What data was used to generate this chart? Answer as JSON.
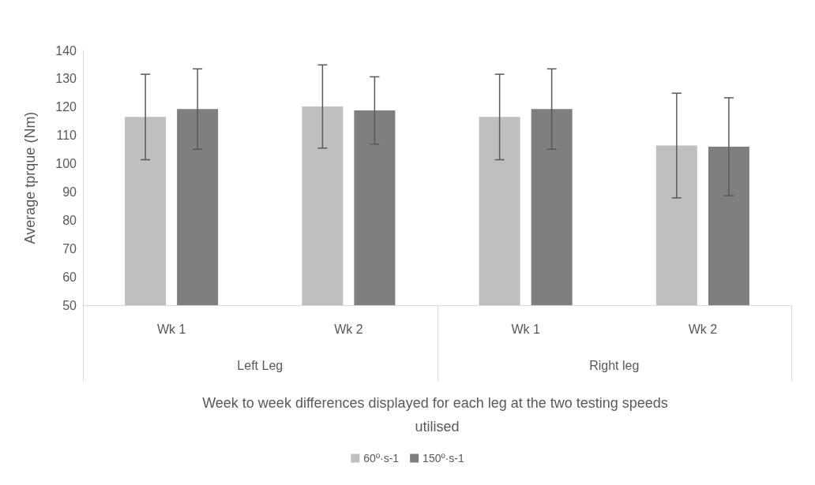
{
  "chart_data": {
    "type": "bar",
    "categories": [
      "Wk 1",
      "Wk 2",
      "Wk 1",
      "Wk 2"
    ],
    "annotations": [
      "Left Leg",
      "Right leg"
    ],
    "xlabel": "Week to week differences displayed for each leg at the two testing speeds utilised",
    "ylabel": "Average tprque (Nm)",
    "series": [
      {
        "name": "60º·s-1",
        "color": "#bfbfbf",
        "values": [
          116.5,
          120.2,
          116.5,
          106.4
        ],
        "errors": [
          15.1,
          14.7,
          15.1,
          18.5
        ]
      },
      {
        "name": "150º·s-1",
        "color": "#7f7f7f",
        "values": [
          119.3,
          118.8,
          119.3,
          106
        ],
        "errors": [
          14.2,
          11.9,
          14.2,
          17.3
        ]
      }
    ],
    "ylim": [
      50,
      140
    ],
    "yticks": [
      50,
      60,
      70,
      80,
      90,
      100,
      110,
      120,
      130,
      140
    ],
    "grid": false,
    "legend": "bottom"
  }
}
